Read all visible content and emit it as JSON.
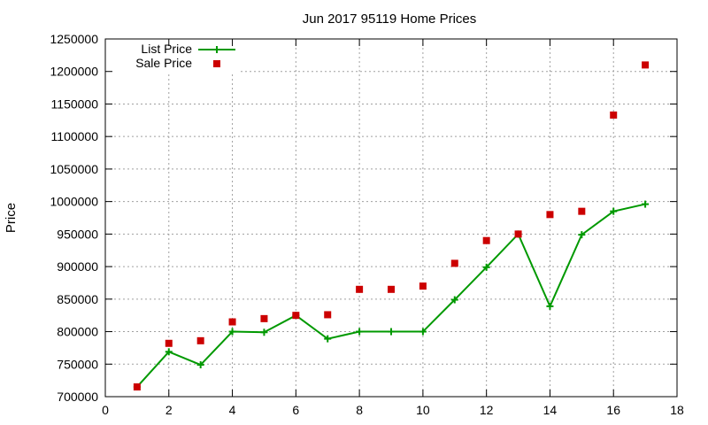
{
  "chart_data": {
    "type": "line",
    "title": "Jun 2017 95119 Home Prices",
    "xlabel": "",
    "ylabel": "Price",
    "xlim": [
      0,
      18
    ],
    "ylim": [
      700000,
      1250000
    ],
    "x_ticks": [
      0,
      2,
      4,
      6,
      8,
      10,
      12,
      14,
      16,
      18
    ],
    "y_ticks": [
      700000,
      750000,
      800000,
      850000,
      900000,
      950000,
      1000000,
      1050000,
      1100000,
      1150000,
      1200000,
      1250000
    ],
    "grid": true,
    "legend_position": "top-left",
    "series": [
      {
        "name": "List Price",
        "style": "line+cross",
        "color": "#009900",
        "x": [
          1,
          2,
          3,
          4,
          5,
          6,
          7,
          8,
          9,
          10,
          11,
          12,
          13,
          14,
          15,
          16,
          17
        ],
        "y": [
          715000,
          769000,
          749000,
          800000,
          799000,
          825000,
          789000,
          800000,
          800000,
          800000,
          849000,
          899000,
          950000,
          839000,
          949000,
          985000,
          996000
        ]
      },
      {
        "name": "Sale Price",
        "style": "square",
        "color": "#cc0000",
        "x": [
          1,
          2,
          3,
          4,
          5,
          6,
          7,
          8,
          9,
          10,
          11,
          12,
          13,
          14,
          15,
          16,
          17
        ],
        "y": [
          715000,
          782000,
          786000,
          815000,
          820000,
          825000,
          826000,
          865000,
          865000,
          870000,
          905000,
          940000,
          950000,
          980000,
          985000,
          1133000,
          1210000
        ]
      }
    ]
  }
}
